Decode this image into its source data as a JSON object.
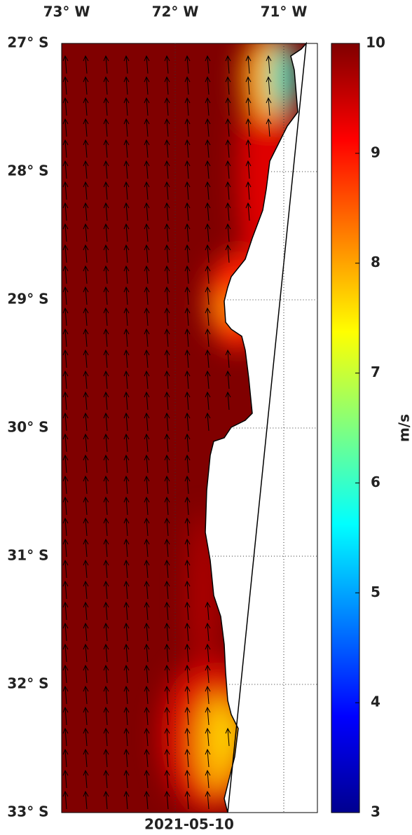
{
  "map": {
    "lon_ticks": [
      {
        "value": 73,
        "label": "73° W"
      },
      {
        "value": 72,
        "label": "72° W"
      },
      {
        "value": 71,
        "label": "71° W"
      }
    ],
    "lat_ticks": [
      {
        "value": 27,
        "label": "27° S"
      },
      {
        "value": 28,
        "label": "28° S"
      },
      {
        "value": 29,
        "label": "29° S"
      },
      {
        "value": 30,
        "label": "30° S"
      },
      {
        "value": 31,
        "label": "31° S"
      },
      {
        "value": 32,
        "label": "32° S"
      },
      {
        "value": 33,
        "label": "33° S"
      }
    ],
    "date": "2021-05-10"
  },
  "colorbar": {
    "lim": [
      3,
      10
    ],
    "ticks": [
      3,
      4,
      5,
      6,
      7,
      8,
      9,
      10
    ],
    "label": "m/s"
  }
}
